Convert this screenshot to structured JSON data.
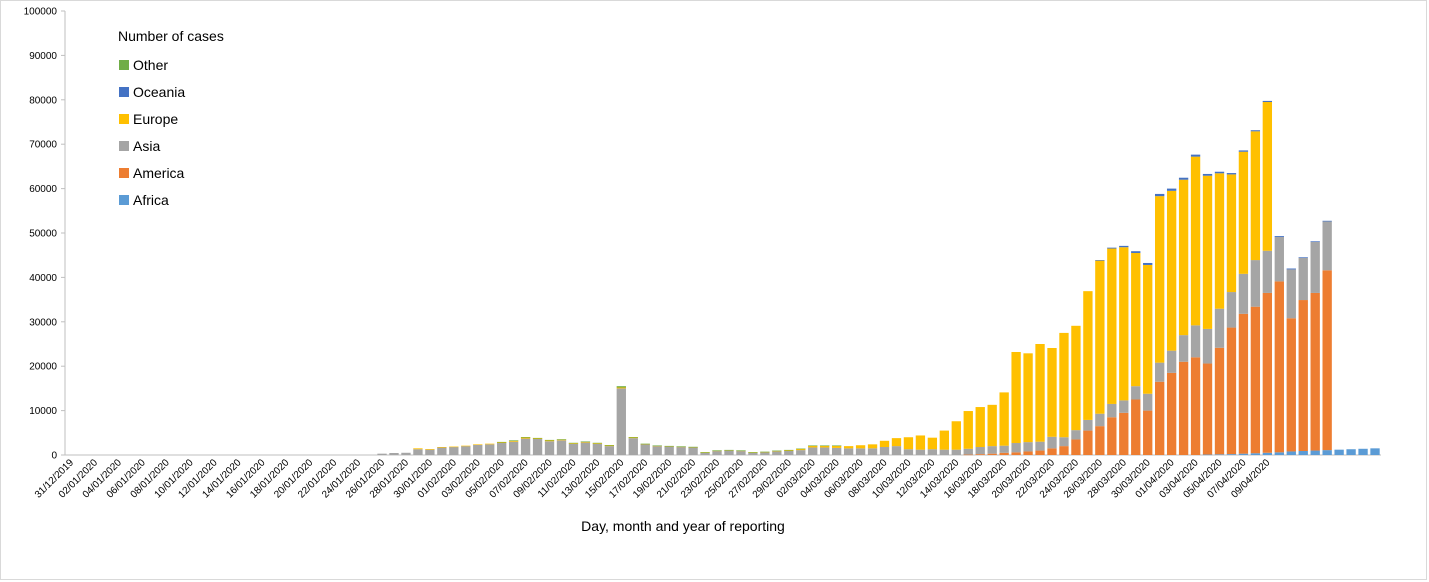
{
  "colors": {
    "Other": "#70ad47",
    "Oceania": "#4472c4",
    "Europe": "#ffc000",
    "Asia": "#a5a5a5",
    "America": "#ed7d31",
    "Africa": "#5b9bd5",
    "axis": "#bfbfbf",
    "text": "#000000"
  },
  "chart_data": {
    "type": "bar",
    "stacked": true,
    "xlabel": "Day, month and year of reporting",
    "ylabel": "",
    "ylim": [
      0,
      100000
    ],
    "yticks": [
      0,
      10000,
      20000,
      30000,
      40000,
      50000,
      60000,
      70000,
      80000,
      90000,
      100000
    ],
    "grid": false,
    "legend_title": "Number of cases",
    "legend_position": "top-left",
    "x_start_label": "31/12/2019",
    "x_tick_labels": [
      "31/12/2019",
      "02/01/2020",
      "04/01/2020",
      "06/01/2020",
      "08/01/2020",
      "10/01/2020",
      "12/01/2020",
      "14/01/2020",
      "16/01/2020",
      "18/01/2020",
      "20/01/2020",
      "22/01/2020",
      "24/01/2020",
      "26/01/2020",
      "28/01/2020",
      "30/01/2020",
      "01/02/2020",
      "03/02/2020",
      "05/02/2020",
      "07/02/2020",
      "09/02/2020",
      "11/02/2020",
      "13/02/2020",
      "15/02/2020",
      "17/02/2020",
      "19/02/2020",
      "21/02/2020",
      "23/02/2020",
      "25/02/2020",
      "27/02/2020",
      "29/02/2020",
      "02/03/2020",
      "04/03/2020",
      "06/03/2020",
      "08/03/2020",
      "10/03/2020",
      "12/03/2020",
      "14/03/2020",
      "16/03/2020",
      "18/03/2020",
      "20/03/2020",
      "22/03/2020",
      "24/03/2020",
      "26/03/2020",
      "28/03/2020",
      "30/03/2020",
      "01/04/2020",
      "03/04/2020",
      "05/04/2020",
      "07/04/2020",
      "09/04/2020"
    ],
    "x_tick_step": 2,
    "legend_order": [
      "Other",
      "Oceania",
      "Europe",
      "Asia",
      "America",
      "Africa"
    ],
    "series": [
      {
        "name": "Africa",
        "values": [
          0,
          0,
          0,
          0,
          0,
          0,
          0,
          0,
          0,
          0,
          0,
          0,
          0,
          0,
          0,
          0,
          0,
          0,
          0,
          0,
          0,
          0,
          0,
          0,
          0,
          0,
          0,
          0,
          0,
          0,
          0,
          0,
          0,
          0,
          0,
          0,
          0,
          0,
          0,
          0,
          0,
          0,
          0,
          0,
          0,
          0,
          0,
          0,
          0,
          0,
          0,
          0,
          0,
          0,
          0,
          0,
          0,
          0,
          0,
          0,
          0,
          0,
          0,
          0,
          0,
          0,
          0,
          0,
          0,
          0,
          0,
          0,
          0,
          0,
          0,
          0,
          0,
          0,
          0,
          0,
          0,
          0,
          0,
          0,
          0,
          0,
          0,
          0,
          0,
          0,
          0,
          0,
          0,
          0,
          0,
          100,
          150,
          200,
          300,
          400,
          500,
          600,
          800,
          900,
          1000,
          1100,
          1200,
          1300,
          1400,
          1500
        ]
      },
      {
        "name": "America",
        "values": [
          0,
          0,
          0,
          0,
          0,
          0,
          0,
          0,
          0,
          0,
          0,
          0,
          0,
          0,
          0,
          0,
          0,
          0,
          0,
          0,
          0,
          0,
          0,
          0,
          0,
          0,
          0,
          0,
          0,
          0,
          0,
          0,
          0,
          0,
          0,
          0,
          0,
          0,
          0,
          0,
          0,
          0,
          0,
          0,
          0,
          0,
          0,
          0,
          0,
          0,
          0,
          0,
          0,
          0,
          0,
          0,
          0,
          0,
          0,
          0,
          0,
          0,
          0,
          0,
          0,
          0,
          0,
          0,
          0,
          0,
          0,
          0,
          0,
          0,
          0,
          100,
          200,
          300,
          500,
          600,
          800,
          1000,
          1500,
          2000,
          3500,
          5500,
          6500,
          8500,
          9500,
          12500,
          10000,
          16500,
          18500,
          21000,
          22000,
          20500,
          24000,
          28500,
          31500,
          33000,
          36000,
          38500,
          30000,
          34000,
          35500,
          40500
        ]
      },
      {
        "name": "Asia",
        "values": [
          0,
          0,
          0,
          0,
          0,
          0,
          0,
          0,
          0,
          0,
          0,
          0,
          0,
          0,
          0,
          0,
          0,
          0,
          0,
          0,
          0,
          0,
          0,
          0,
          0,
          0,
          300,
          450,
          500,
          1300,
          1200,
          1700,
          1800,
          2000,
          2300,
          2400,
          2700,
          3000,
          3700,
          3600,
          3100,
          3300,
          2500,
          2800,
          2500,
          2000,
          15000,
          3800,
          2400,
          2000,
          1900,
          1800,
          1700,
          500,
          900,
          1000,
          900,
          500,
          600,
          800,
          900,
          1100,
          1700,
          1700,
          1600,
          1500,
          1500,
          1500,
          1800,
          2000,
          1300,
          1200,
          1300,
          1200,
          1200,
          1300,
          1600,
          1700,
          1600,
          2100,
          2100,
          2000,
          2600,
          2000,
          2100,
          2400,
          2800,
          3000,
          2800,
          3000,
          3800,
          4300,
          5000,
          6000,
          7200,
          7800,
          8800,
          8000,
          9000,
          10500,
          9500,
          10000,
          11000,
          9500,
          11500,
          11000
        ]
      },
      {
        "name": "Europe",
        "values": [
          0,
          0,
          0,
          0,
          0,
          0,
          0,
          0,
          0,
          0,
          0,
          0,
          0,
          0,
          0,
          0,
          0,
          0,
          0,
          0,
          0,
          0,
          0,
          0,
          0,
          0,
          0,
          0,
          0,
          200,
          150,
          100,
          100,
          100,
          100,
          150,
          200,
          250,
          300,
          200,
          200,
          200,
          200,
          200,
          200,
          200,
          200,
          200,
          100,
          100,
          100,
          100,
          100,
          100,
          100,
          100,
          100,
          100,
          100,
          150,
          200,
          300,
          400,
          400,
          500,
          500,
          700,
          900,
          1400,
          1800,
          2700,
          3200,
          2600,
          4300,
          6400,
          8500,
          9000,
          9300,
          12000,
          20500,
          20000,
          22000,
          20000,
          23500,
          23500,
          29000,
          34500,
          35000,
          34500,
          30000,
          29000,
          37500,
          36000,
          35000,
          38000,
          34500,
          30500,
          26500,
          27500,
          29000,
          33500
        ]
      },
      {
        "name": "Oceania",
        "values": [
          0,
          0,
          0,
          0,
          0,
          0,
          0,
          0,
          0,
          0,
          0,
          0,
          0,
          0,
          0,
          0,
          0,
          0,
          0,
          0,
          0,
          0,
          0,
          0,
          0,
          0,
          0,
          0,
          0,
          0,
          0,
          0,
          0,
          0,
          0,
          0,
          0,
          0,
          0,
          0,
          0,
          0,
          0,
          0,
          0,
          0,
          0,
          0,
          0,
          0,
          0,
          0,
          0,
          0,
          0,
          0,
          0,
          0,
          0,
          0,
          0,
          0,
          0,
          0,
          0,
          0,
          0,
          0,
          0,
          0,
          0,
          0,
          0,
          0,
          0,
          0,
          0,
          0,
          0,
          0,
          0,
          0,
          0,
          0,
          0,
          0,
          100,
          200,
          300,
          400,
          450,
          500,
          500,
          450,
          450,
          400,
          350,
          300,
          300,
          250,
          250,
          200,
          200,
          150,
          150,
          150
        ]
      },
      {
        "name": "Other",
        "values": [
          0,
          0,
          0,
          0,
          0,
          0,
          0,
          0,
          0,
          0,
          0,
          0,
          0,
          0,
          0,
          0,
          0,
          0,
          0,
          0,
          0,
          0,
          0,
          0,
          0,
          0,
          0,
          0,
          0,
          0,
          0,
          0,
          0,
          0,
          0,
          0,
          50,
          50,
          50,
          50,
          100,
          50,
          50,
          50,
          50,
          50,
          300,
          50,
          50,
          50,
          50,
          50,
          50,
          50,
          50,
          50,
          50,
          50,
          50,
          50,
          50,
          50,
          50,
          50,
          50,
          0,
          0,
          0,
          0,
          0,
          0,
          0,
          0,
          0,
          0,
          0,
          0,
          0,
          0,
          0,
          0,
          0,
          0,
          0,
          0,
          0,
          0,
          0,
          0,
          0,
          0,
          0,
          0,
          0,
          0,
          0,
          0,
          0,
          0,
          0,
          0,
          0,
          0,
          0,
          0,
          0
        ]
      }
    ]
  }
}
